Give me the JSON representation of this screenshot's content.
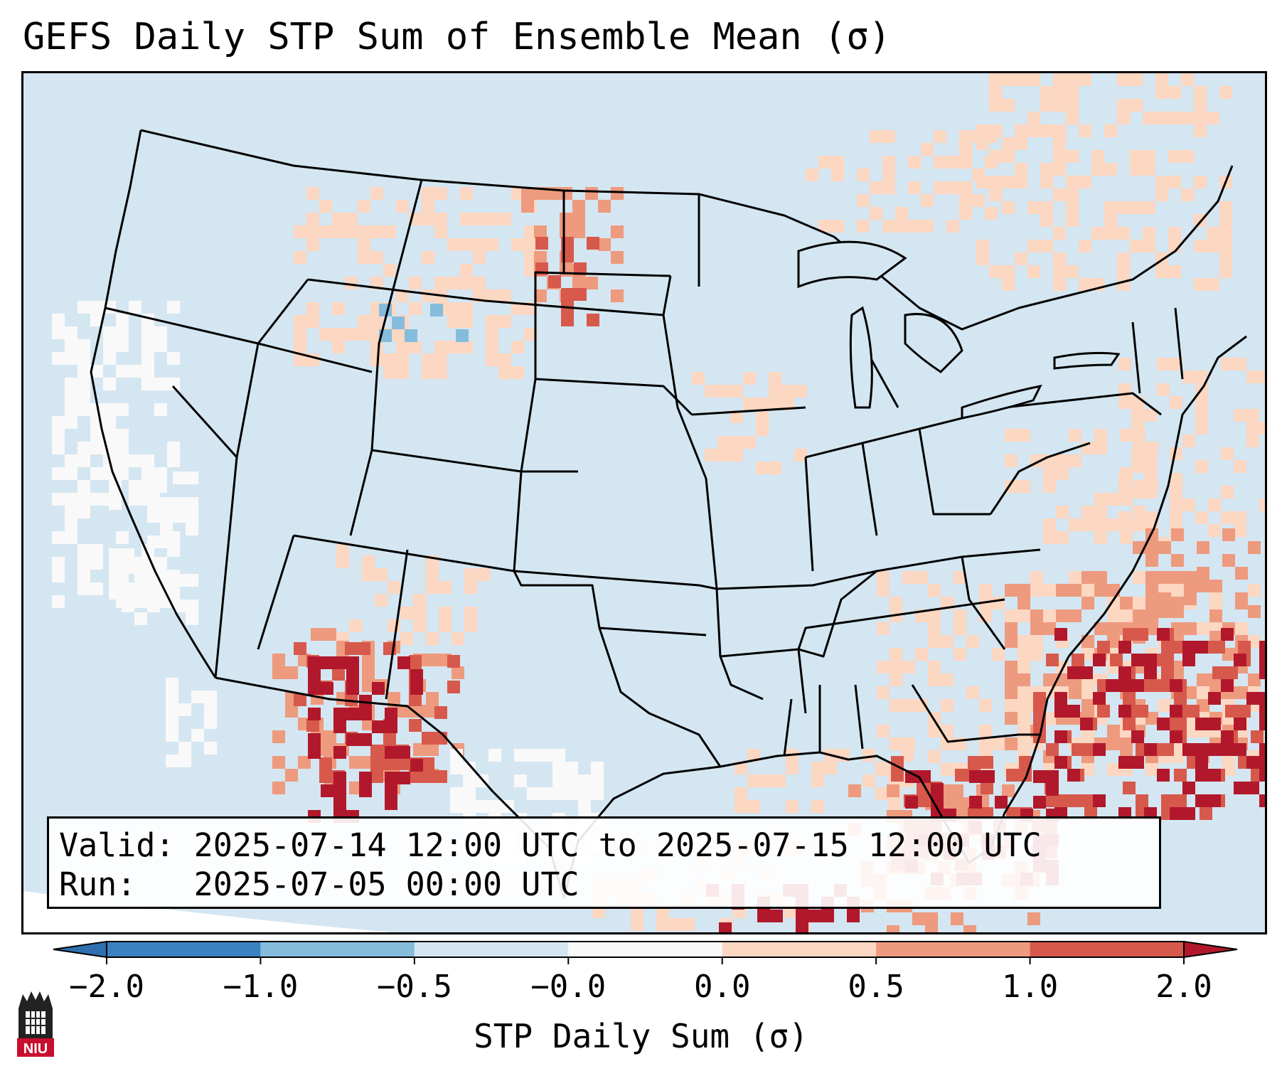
{
  "title": "GEFS Daily STP Sum of Ensemble Mean (σ)",
  "info": {
    "valid_label": "Valid:",
    "valid_value": "2025-07-14 12:00 UTC to 2025-07-15 12:00 UTC",
    "run_label": "Run:",
    "run_value": "2025-07-05 00:00 UTC"
  },
  "colorbar": {
    "label": "STP Daily Sum (σ)",
    "ticks": [
      "−2.0",
      "−1.0",
      "−0.5",
      "−0.0",
      "0.0",
      "0.5",
      "1.0",
      "2.0"
    ],
    "colors": [
      "#3b83c0",
      "#85bcdc",
      "#d4e6f1",
      "#f9f9f9",
      "#fcd7c2",
      "#ee9a7e",
      "#d7594c"
    ],
    "extend_low": "#2f6fae",
    "extend_high": "#b2182b"
  },
  "map": {
    "ocean_color": "#d4e6f1",
    "outside_domain_color": "#ffffff",
    "border_color": "#000000"
  },
  "logo": {
    "text": "NIU",
    "color": "#c8102e"
  }
}
